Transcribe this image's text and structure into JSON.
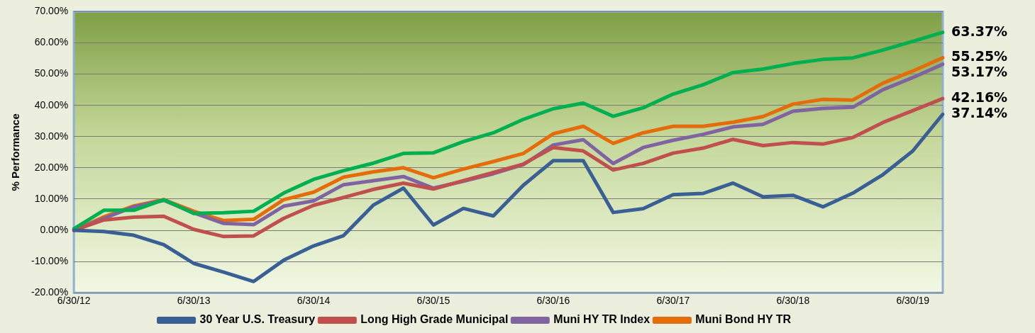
{
  "chart_data": {
    "type": "line",
    "ylabel": "% Performance",
    "categories": [
      "6/30/12",
      null,
      null,
      null,
      "6/30/13",
      null,
      null,
      null,
      "6/30/14",
      null,
      null,
      null,
      "6/30/15",
      null,
      null,
      null,
      "6/30/16",
      null,
      null,
      null,
      "6/30/17",
      null,
      null,
      null,
      "6/30/18",
      null,
      null,
      null,
      "6/30/19",
      null
    ],
    "ylim": [
      -20,
      70
    ],
    "yticks": [
      {
        "value": -20,
        "label": "-20.00%"
      },
      {
        "value": -10,
        "label": "-10.00%"
      },
      {
        "value": 0,
        "label": "0.00%"
      },
      {
        "value": 10,
        "label": "10.00%"
      },
      {
        "value": 20,
        "label": "20.00%"
      },
      {
        "value": 30,
        "label": "30.00%"
      },
      {
        "value": 40,
        "label": "40.00%"
      },
      {
        "value": 50,
        "label": "50.00%"
      },
      {
        "value": 60,
        "label": "60.00%"
      },
      {
        "value": 70,
        "label": "70.00%"
      }
    ],
    "grid": "y",
    "legend": "bottom",
    "marker": "none",
    "line_style": "solid",
    "series": [
      {
        "name": "30 Year U.S. Treasury",
        "color": "#3a5f94",
        "values": [
          0,
          -0.4,
          -1.6,
          -4.6,
          -10.6,
          -13.4,
          -16.4,
          -9.6,
          -5.0,
          -1.7,
          8.1,
          13.5,
          1.7,
          7.0,
          4.6,
          14.4,
          22.3,
          22.3,
          5.7,
          6.9,
          11.4,
          11.8,
          15.1,
          10.7,
          11.2,
          7.5,
          11.9,
          17.8,
          25.4,
          37.14
        ],
        "value_labels": [
          null,
          null,
          null,
          null,
          null,
          null,
          null,
          null,
          null,
          null,
          null,
          null,
          null,
          null,
          null,
          null,
          null,
          null,
          null,
          null,
          null,
          null,
          null,
          null,
          null,
          null,
          null,
          null,
          null,
          "37.14%"
        ]
      },
      {
        "color": "#00b050",
        "values": [
          0.5,
          6.4,
          6.4,
          9.8,
          5.4,
          5.6,
          6.1,
          11.9,
          16.3,
          19.1,
          21.5,
          24.6,
          24.8,
          28.4,
          31.2,
          35.5,
          38.9,
          40.7,
          36.5,
          39.2,
          43.6,
          46.6,
          50.5,
          51.6,
          53.4,
          54.7,
          55.2,
          57.7,
          60.5,
          63.37
        ],
        "value_labels": [
          null,
          null,
          null,
          null,
          null,
          null,
          null,
          null,
          null,
          null,
          null,
          null,
          null,
          null,
          null,
          null,
          null,
          null,
          null,
          null,
          null,
          null,
          null,
          null,
          null,
          null,
          null,
          null,
          null,
          "63.37%"
        ]
      },
      {
        "name": "Long High Grade Municipal",
        "color": "#c0504d",
        "values": [
          0,
          3.3,
          4.2,
          4.5,
          0.3,
          -2.0,
          -1.8,
          3.8,
          8.0,
          10.5,
          13.1,
          15.1,
          13.2,
          15.9,
          18.5,
          21.2,
          26.5,
          25.4,
          19.3,
          21.4,
          24.7,
          26.3,
          29.1,
          27.1,
          28.1,
          27.6,
          29.7,
          34.5,
          38.3,
          42.16
        ],
        "value_labels": [
          null,
          null,
          null,
          null,
          null,
          null,
          null,
          null,
          null,
          null,
          null,
          null,
          null,
          null,
          null,
          null,
          null,
          null,
          null,
          null,
          null,
          null,
          null,
          null,
          null,
          null,
          null,
          null,
          null,
          "42.16%"
        ]
      },
      {
        "name": "Muni HY TR Index",
        "color": "#8064a2",
        "values": [
          0,
          3.8,
          7.5,
          9.6,
          5.6,
          2.2,
          1.8,
          7.7,
          9.4,
          14.6,
          15.9,
          17.2,
          13.5,
          15.7,
          18.1,
          21.0,
          27.3,
          29.0,
          21.4,
          26.5,
          28.8,
          30.7,
          33.1,
          33.9,
          38.1,
          39.0,
          39.4,
          45.0,
          48.9,
          53.17
        ],
        "value_labels": [
          null,
          null,
          null,
          null,
          null,
          null,
          null,
          null,
          null,
          null,
          null,
          null,
          null,
          null,
          null,
          null,
          null,
          null,
          null,
          null,
          null,
          null,
          null,
          null,
          null,
          null,
          null,
          null,
          null,
          "53.17%"
        ]
      },
      {
        "name": "Muni Bond HY TR",
        "color": "#e46c0a",
        "values": [
          0,
          4.3,
          7.8,
          9.8,
          6.1,
          3.1,
          3.5,
          9.8,
          12.2,
          17.0,
          18.7,
          20.0,
          16.8,
          19.6,
          22.0,
          24.6,
          30.9,
          33.3,
          27.8,
          31.2,
          33.3,
          33.3,
          34.6,
          36.4,
          40.4,
          41.9,
          41.7,
          47.1,
          51.0,
          55.25
        ],
        "value_labels": [
          null,
          null,
          null,
          null,
          null,
          null,
          null,
          null,
          null,
          null,
          null,
          null,
          null,
          null,
          null,
          null,
          null,
          null,
          null,
          null,
          null,
          null,
          null,
          null,
          null,
          null,
          null,
          null,
          null,
          "55.25%"
        ]
      }
    ]
  }
}
